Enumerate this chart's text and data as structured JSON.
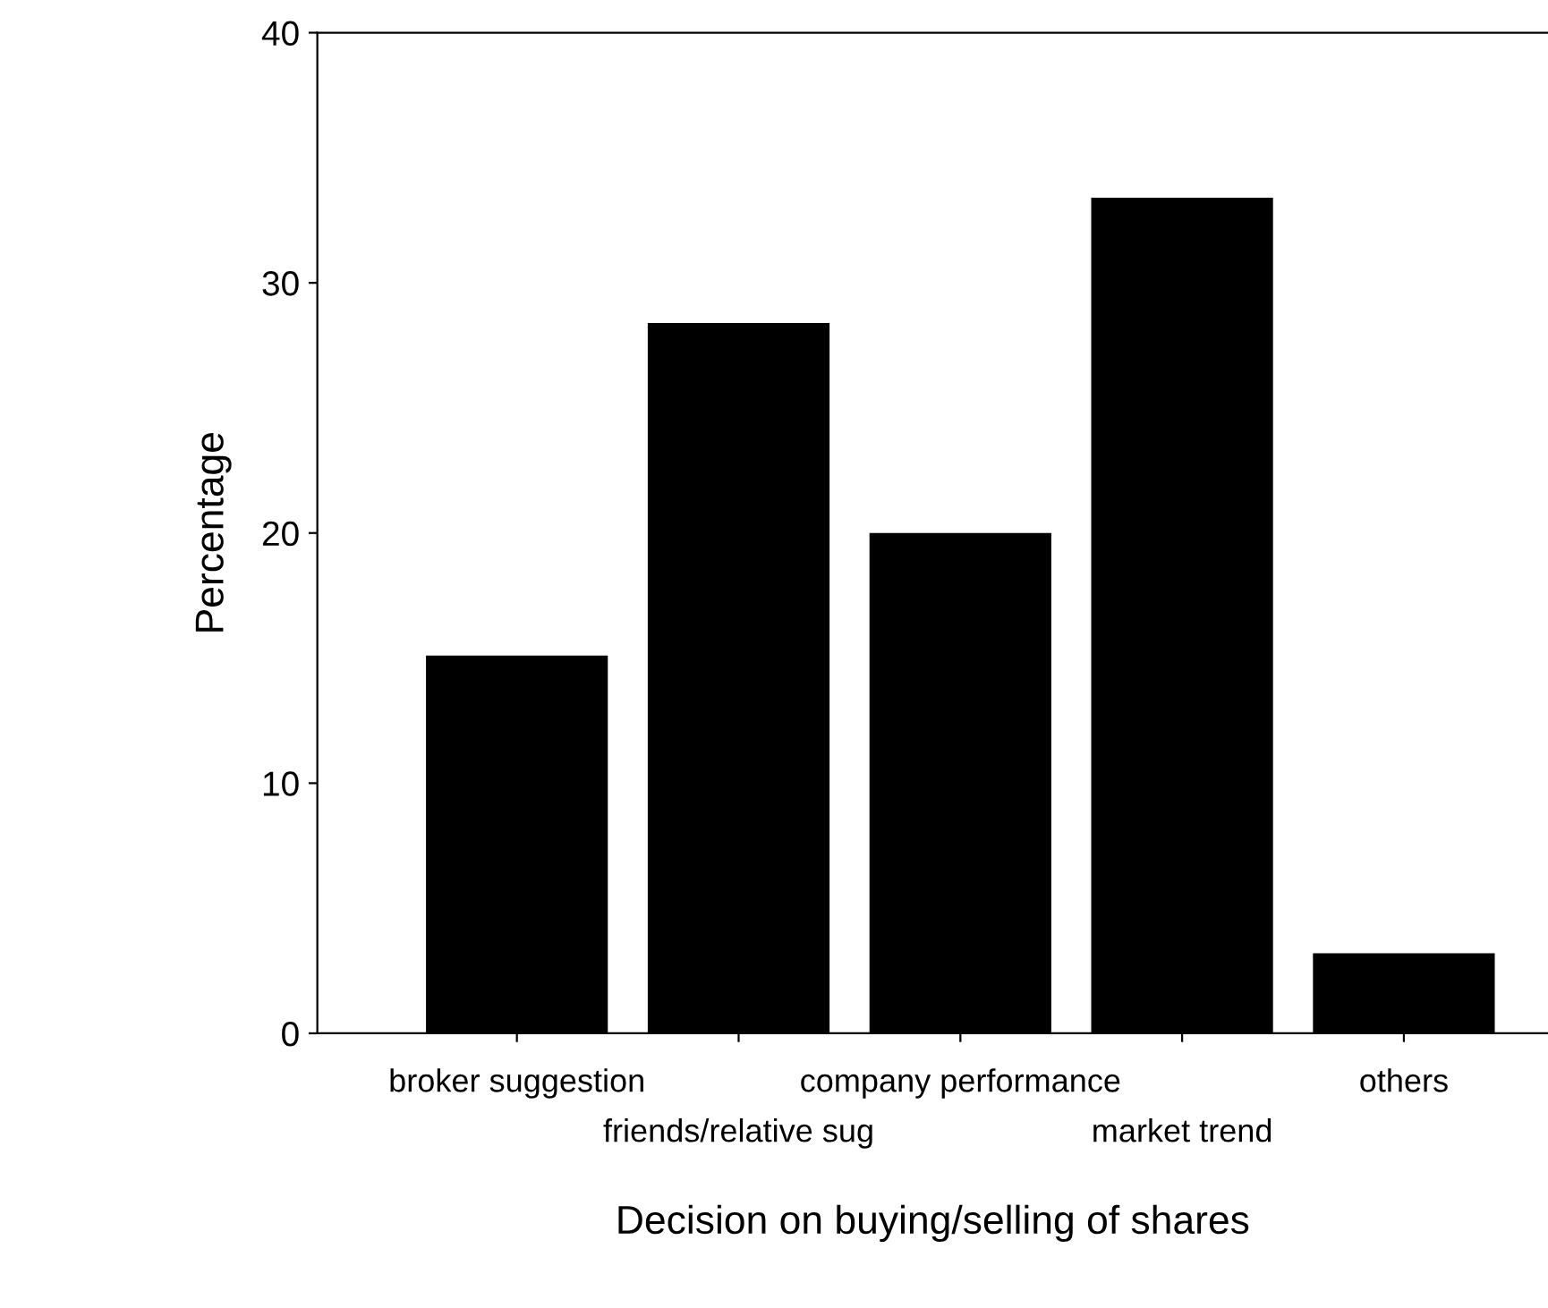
{
  "chart_data": {
    "type": "bar",
    "xlabel": "Decision on buying/selling of shares",
    "ylabel": "Percentage",
    "categories": [
      "broker suggestion",
      "friends/relative sug",
      "company performance",
      "market trend",
      "others"
    ],
    "values": [
      15.1,
      28.4,
      20.0,
      33.4,
      3.2
    ],
    "color": "#000000",
    "ylim": [
      0,
      40
    ],
    "yticks": [
      0,
      10,
      20,
      30,
      40
    ],
    "grid": false
  }
}
